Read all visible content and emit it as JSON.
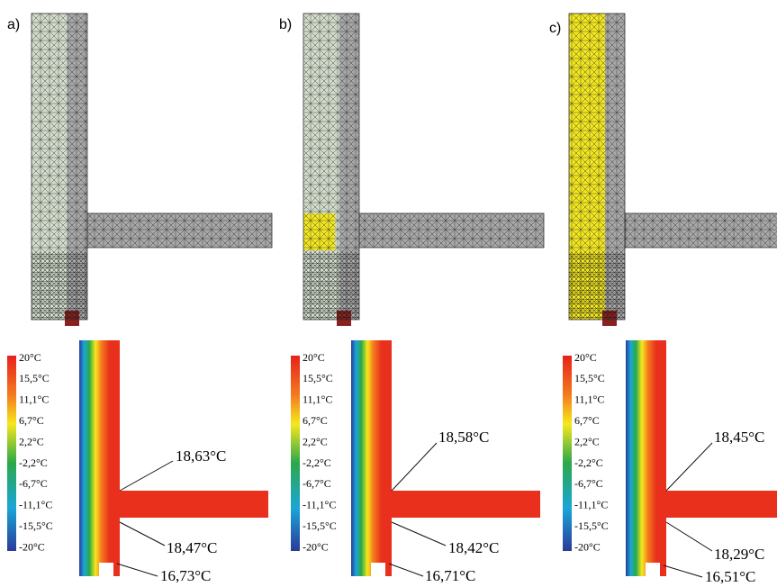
{
  "panels": [
    {
      "label": "a)",
      "annotations": [
        "18,63°C",
        "18,47°C",
        "16,73°C"
      ]
    },
    {
      "label": "b)",
      "annotations": [
        "18,58°C",
        "18,42°C",
        "16,71°C"
      ]
    },
    {
      "label": "c)",
      "annotations": [
        "18,45°C",
        "18,29°C",
        "16,51°C"
      ]
    }
  ],
  "legend_labels": [
    "20°C",
    "15,5°C",
    "11,1°C",
    "6,7°C",
    "2,2°C",
    "-2,2°C",
    "-6,7°C",
    "-11,1°C",
    "-15,5°C",
    "-20°C"
  ]
}
